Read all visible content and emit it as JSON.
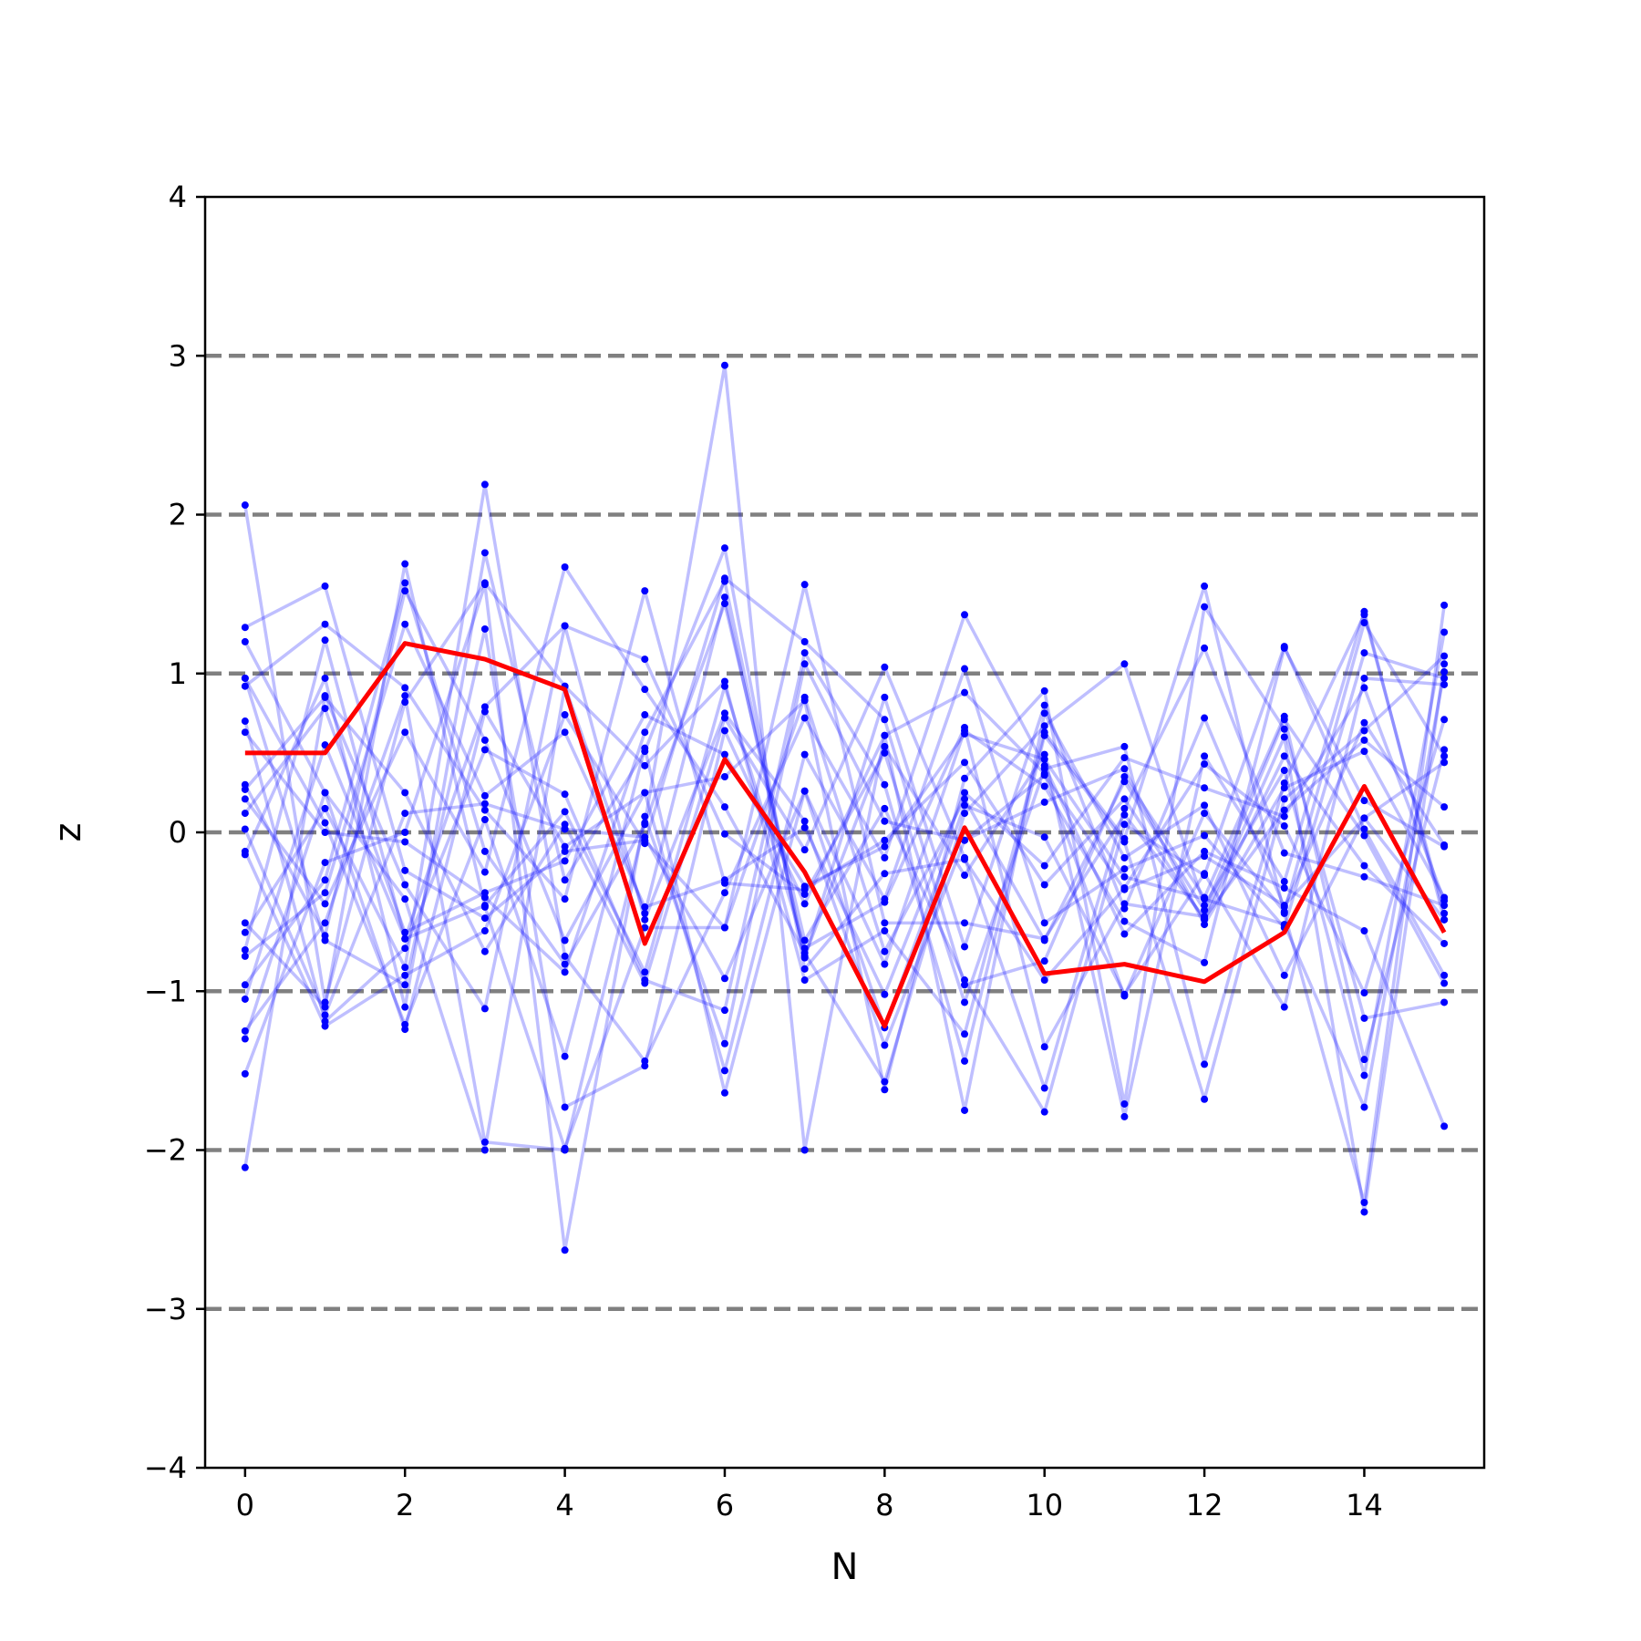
{
  "chart_data": {
    "type": "line",
    "xlabel": "N",
    "ylabel": "z",
    "xlim": [
      -0.5,
      15.5
    ],
    "ylim": [
      -4,
      4
    ],
    "x_ticks": [
      0,
      2,
      4,
      6,
      8,
      10,
      12,
      14
    ],
    "x_tick_labels": [
      "0",
      "2",
      "4",
      "6",
      "8",
      "10",
      "12",
      "14"
    ],
    "y_ticks": [
      -4,
      -3,
      -2,
      -1,
      0,
      1,
      2,
      3,
      4
    ],
    "y_tick_labels": [
      "−4",
      "−3",
      "−2",
      "−1",
      "0",
      "1",
      "2",
      "3",
      "4"
    ],
    "reference_lines": [
      -3,
      -2,
      -1,
      0,
      1,
      2,
      3
    ],
    "x": [
      0,
      1,
      2,
      3,
      4,
      5,
      6,
      7,
      8,
      9,
      10,
      11,
      12,
      13,
      14,
      15
    ],
    "highlight_series": {
      "color": "#ff0000",
      "values": [
        0.5,
        0.5,
        1.19,
        1.09,
        0.9,
        -0.7,
        0.46,
        -0.25,
        -1.22,
        0.03,
        -0.89,
        -0.83,
        -0.94,
        -0.63,
        0.29,
        -0.63
      ]
    },
    "background_color": "#0000ff",
    "reference_line_color": "#808080",
    "background_series": [
      [
        2.06,
        -1.07,
        0.82,
        1.57,
        0.92,
        -0.51,
        1.48,
        -0.78,
        0.54,
        -0.27,
        0.49,
        -1.79,
        0.48,
        -0.31,
        1.39,
        -0.55
      ],
      [
        1.29,
        1.55,
        -0.24,
        -0.54,
        -0.12,
        -0.05,
        -0.6,
        0.85,
        -0.75,
        0.21,
        -0.68,
        0.32,
        -0.49,
        0.71,
        -0.02,
        -0.95
      ],
      [
        1.2,
        0.25,
        -0.42,
        -2.0,
        0.92,
        0.42,
        0.95,
        -0.93,
        -0.62,
        -1.27,
        0.63,
        -0.04,
        1.55,
        -0.51,
        -2.33,
        1.43
      ],
      [
        0.97,
        -0.68,
        -0.96,
        1.28,
        -1.73,
        -1.47,
        0.64,
        -0.45,
        0.61,
        0.88,
        0.37,
        -1.03,
        0.12,
        -0.5,
        1.32,
        0.48
      ],
      [
        0.92,
        1.31,
        0.91,
        0.14,
        -0.42,
        1.52,
        -0.32,
        -0.36,
        -0.05,
        0.44,
        -0.33,
        0.21,
        -0.55,
        0.48,
        -0.21,
        -0.7
      ],
      [
        0.7,
        -1.19,
        -0.73,
        0.52,
        0.24,
        -0.93,
        -1.12,
        1.13,
        0.3,
        -1.44,
        0.61,
        -0.06,
        -1.68,
        0.21,
        0.64,
        1.11
      ],
      [
        0.63,
        0.0,
        -0.06,
        -0.41,
        -0.88,
        0.63,
        1.58,
        -0.79,
        0.85,
        -0.72,
        0.8,
        -0.48,
        0.72,
        -0.47,
        0.69,
        -0.08
      ],
      [
        0.3,
        -0.65,
        1.52,
        0.58,
        -0.68,
        0.25,
        -1.5,
        0.49,
        -0.42,
        1.03,
        -0.57,
        -0.23,
        -0.02,
        -0.6,
        1.13,
        0.97
      ],
      [
        0.27,
        0.85,
        0.25,
        -0.75,
        0.05,
        -0.95,
        0.72,
        -0.11,
        1.04,
        -0.16,
        -1.61,
        0.15,
        1.16,
        -0.13,
        -0.28,
        -0.46
      ],
      [
        0.21,
        -0.45,
        0.63,
        -0.25,
        1.67,
        0.9,
        0.16,
        -0.76,
        -1.57,
        0.12,
        0.67,
        1.06,
        -0.46,
        0.39,
        -1.53,
        1.26
      ],
      [
        0.02,
        -1.15,
        0.12,
        0.18,
        0.02,
        -0.03,
        -0.92,
        0.26,
        -0.83,
        0.64,
        0.29,
        -0.56,
        -0.82,
        1.16,
        0.2,
        -0.09
      ],
      [
        -0.14,
        0.97,
        -1.1,
        1.76,
        -0.3,
        0.51,
        1.79,
        -0.86,
        -0.26,
        -0.17,
        -0.93,
        -0.35,
        0.43,
        0.04,
        -1.01,
        0.71
      ],
      [
        -0.57,
        -1.1,
        1.69,
        -0.47,
        -1.99,
        -0.6,
        -0.6,
        1.56,
        -0.57,
        -0.57,
        -0.67,
        0.11,
        -0.54,
        0.14,
        0.58,
        0.16
      ],
      [
        -0.63,
        0.15,
        -0.85,
        2.19,
        -0.78,
        -1.44,
        -0.38,
        0.72,
        -0.16,
        1.37,
        0.42,
        -0.64,
        -0.12,
        -0.35,
        -0.62,
        -1.85
      ],
      [
        -0.74,
        1.21,
        -0.67,
        0.79,
        1.3,
        -0.55,
        0.75,
        0.07,
        -1.34,
        -0.05,
        0.19,
        0.4,
        -0.58,
        0.28,
        0.51,
        -0.41
      ],
      [
        -0.96,
        -0.3,
        1.57,
        -0.12,
        -0.83,
        0.05,
        1.44,
        -0.68,
        0.15,
        -0.93,
        -1.76,
        0.05,
        -0.27,
        1.17,
        0.02,
        -0.9
      ],
      [
        -1.05,
        0.55,
        -0.67,
        -0.46,
        0.13,
        -0.88,
        0.92,
        -0.73,
        -0.44,
        0.66,
        -1.35,
        -0.45,
        -0.53,
        0.6,
        -2.39,
        1.06
      ],
      [
        -1.25,
        -0.57,
        0.86,
        -1.95,
        -2.0,
        0.06,
        2.94,
        -2.0,
        0.61,
        -1.75,
        0.75,
        -0.16,
        0.17,
        -0.9,
        0.09,
        -0.55
      ],
      [
        -1.3,
        0.25,
        -1.24,
        0.76,
        -0.09,
        0.25,
        0.35,
        0.83,
        -1.62,
        0.34,
        0.89,
        -1.71,
        1.42,
        0.65,
        -1.17,
        -1.07
      ],
      [
        -1.52,
        -0.19,
        0.0,
        1.56,
        -2.63,
        0.1,
        -1.33,
        1.06,
        0.07,
        -0.05,
        0.36,
        -0.36,
        -0.15,
        -0.46,
        0.09,
        0.44
      ],
      [
        -2.11,
        0.86,
        -0.33,
        -1.11,
        1.3,
        1.09,
        -0.01,
        -0.39,
        0.5,
        -1.07,
        0.4,
        0.54,
        -1.46,
        0.31,
        1.37,
        -0.51
      ],
      [
        0.97,
        0.06,
        -1.21,
        0.08,
        -1.41,
        0.53,
        -1.64,
        0.26,
        -1.23,
        0.17,
        -0.03,
        -1.02,
        -0.26,
        -1.1,
        0.97,
        0.93
      ],
      [
        -0.12,
        -1.22,
        -0.9,
        -0.62,
        0.74,
        -0.07,
        1.6,
        1.2,
        0.71,
        -0.96,
        -0.81,
        0.35,
        -0.41,
        0.73,
        -1.43,
        0.52
      ],
      [
        0.12,
        0.78,
        -0.63,
        -0.38,
        -0.18,
        0.74,
        0.49,
        -0.34,
        -0.09,
        0.62,
        0.46,
        -0.28,
        -0.42,
        -0.58,
        -1.73,
        1.01
      ],
      [
        -0.78,
        -0.38,
        1.31,
        0.23,
        0.63,
        -0.47,
        -0.3,
        0.03,
        -1.02,
        0.25,
        -0.21,
        0.47,
        0.28,
        0.1,
        0.91,
        -0.43
      ]
    ]
  }
}
